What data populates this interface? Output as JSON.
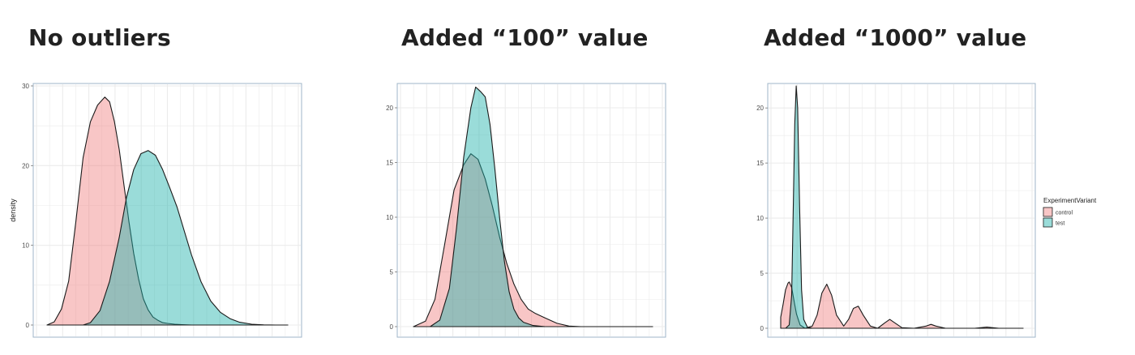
{
  "panels": [
    {
      "title": "No outliers"
    },
    {
      "title": "Added “100” value"
    },
    {
      "title": "Added “1000” value"
    }
  ],
  "chart_data": [
    {
      "type": "area",
      "title": "No outliers",
      "ylabel": "density",
      "ylim": [
        0,
        30
      ],
      "yticks": [
        "0",
        "10",
        "20",
        "30"
      ],
      "xlim": [
        0,
        1
      ],
      "grid": true,
      "series": [
        {
          "name": "control",
          "x": [
            0.0,
            0.03,
            0.06,
            0.09,
            0.12,
            0.15,
            0.18,
            0.21,
            0.24,
            0.26,
            0.28,
            0.3,
            0.32,
            0.34,
            0.36,
            0.38,
            0.4,
            0.42,
            0.44,
            0.46,
            0.48,
            0.5,
            0.53,
            0.56,
            0.6,
            0.65,
            0.7,
            1.0
          ],
          "y": [
            0,
            0.4,
            2.0,
            5.5,
            13.0,
            21.0,
            25.5,
            27.6,
            28.6,
            28.0,
            25.5,
            22.0,
            17.5,
            13.0,
            9.0,
            5.8,
            3.3,
            1.9,
            1.0,
            0.6,
            0.3,
            0.2,
            0.1,
            0.05,
            0,
            0,
            0,
            0
          ]
        },
        {
          "name": "test",
          "x": [
            0.0,
            0.15,
            0.18,
            0.22,
            0.26,
            0.3,
            0.33,
            0.36,
            0.39,
            0.42,
            0.45,
            0.48,
            0.51,
            0.54,
            0.57,
            0.6,
            0.64,
            0.68,
            0.72,
            0.76,
            0.8,
            0.85,
            0.9,
            0.95,
            1.0
          ],
          "y": [
            0,
            0,
            0.3,
            1.8,
            5.5,
            11.0,
            16.0,
            19.5,
            21.5,
            21.9,
            21.3,
            19.5,
            17.2,
            14.8,
            11.8,
            8.8,
            5.4,
            3.0,
            1.6,
            0.8,
            0.35,
            0.1,
            0.02,
            0,
            0
          ]
        }
      ]
    },
    {
      "type": "area",
      "title": "Added “100” value",
      "ylabel": "",
      "ylim": [
        0,
        22
      ],
      "yticks": [
        "0",
        "5",
        "10",
        "15",
        "20"
      ],
      "xlim": [
        0,
        1
      ],
      "grid": true,
      "series": [
        {
          "name": "control",
          "x": [
            0.0,
            0.05,
            0.09,
            0.13,
            0.17,
            0.21,
            0.24,
            0.27,
            0.3,
            0.33,
            0.36,
            0.39,
            0.42,
            0.45,
            0.48,
            0.51,
            0.55,
            0.6,
            0.65,
            0.7,
            0.75,
            1.0
          ],
          "y": [
            0,
            0.5,
            2.5,
            7.5,
            12.5,
            14.8,
            15.8,
            15.3,
            13.5,
            11.0,
            8.2,
            5.8,
            3.9,
            2.5,
            1.6,
            1.2,
            0.8,
            0.3,
            0.05,
            0,
            0,
            0
          ]
        },
        {
          "name": "test",
          "x": [
            0.0,
            0.07,
            0.11,
            0.15,
            0.18,
            0.21,
            0.24,
            0.26,
            0.28,
            0.3,
            0.32,
            0.34,
            0.36,
            0.38,
            0.4,
            0.42,
            0.44,
            0.46,
            0.5,
            0.55,
            0.6,
            1.0
          ],
          "y": [
            0,
            0,
            0.6,
            3.5,
            9.0,
            15.5,
            20.0,
            21.9,
            21.5,
            21.0,
            18.5,
            14.5,
            10.0,
            6.0,
            3.2,
            1.6,
            0.8,
            0.4,
            0.1,
            0,
            0,
            0
          ]
        }
      ]
    },
    {
      "type": "area",
      "title": "Added “1000” value",
      "ylabel": "",
      "ylim": [
        0,
        22
      ],
      "yticks": [
        "0",
        "5",
        "10",
        "15",
        "20"
      ],
      "xlim": [
        0,
        1
      ],
      "grid": true,
      "legend": {
        "title": "ExperimentVariant",
        "position": "right",
        "entries": [
          "control",
          "test"
        ]
      },
      "series": [
        {
          "name": "control",
          "x": [
            0.0,
            0.01,
            0.02,
            0.03,
            0.035,
            0.045,
            0.055,
            0.065,
            0.08,
            0.1,
            0.13,
            0.15,
            0.17,
            0.19,
            0.21,
            0.23,
            0.26,
            0.28,
            0.3,
            0.32,
            0.34,
            0.37,
            0.4,
            0.43,
            0.45,
            0.47,
            0.5,
            0.55,
            0.6,
            0.62,
            0.64,
            0.68,
            0.8,
            0.85,
            0.9,
            1.0
          ],
          "y": [
            1.0,
            2.2,
            3.5,
            4.1,
            4.2,
            3.7,
            2.5,
            1.3,
            0.3,
            0,
            0.2,
            1.2,
            3.2,
            4.0,
            3.0,
            1.2,
            0.2,
            0.8,
            1.8,
            2.0,
            1.2,
            0.2,
            0,
            0.5,
            0.8,
            0.5,
            0.05,
            0,
            0.2,
            0.35,
            0.2,
            0,
            0,
            0.1,
            0,
            0
          ]
        },
        {
          "name": "test",
          "x": [
            0.0,
            0.02,
            0.035,
            0.045,
            0.052,
            0.058,
            0.064,
            0.07,
            0.078,
            0.086,
            0.095,
            0.11,
            0.13,
            1.0
          ],
          "y": [
            0,
            0,
            0.3,
            3.0,
            11.0,
            18.5,
            22.0,
            20.0,
            11.0,
            3.5,
            0.8,
            0.1,
            0,
            0
          ]
        }
      ]
    }
  ],
  "colors": {
    "control": "#f08080",
    "test": "#20b2aa",
    "outline": "#1a1a1a",
    "grid": "#ebebeb",
    "panel_border": "#9fb5c8",
    "tick_text": "#4d4d4d"
  }
}
